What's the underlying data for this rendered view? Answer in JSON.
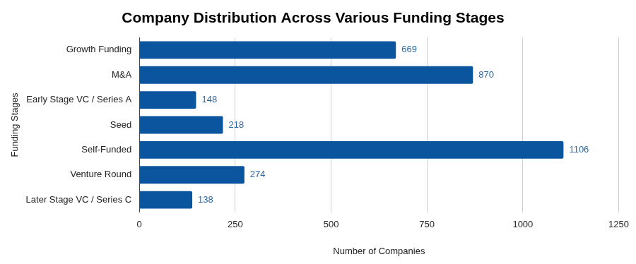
{
  "chart_data": {
    "type": "bar",
    "orientation": "horizontal",
    "title": "Company Distribution Across Various Funding Stages",
    "x_label": "Number of Companies",
    "y_label": "Funding Stages",
    "categories": [
      "Growth Funding",
      "M&A",
      "Early Stage VC / Series A",
      "Seed",
      "Self-Funded",
      "Venture Round",
      "Later Stage VC / Series C"
    ],
    "values": [
      669,
      870,
      148,
      218,
      1106,
      274,
      138
    ],
    "color": "#0b559f",
    "xlim": [
      0,
      1250
    ],
    "xticks": [
      0,
      250,
      500,
      750,
      1000,
      1250
    ],
    "grid": true,
    "data_labels": true
  }
}
